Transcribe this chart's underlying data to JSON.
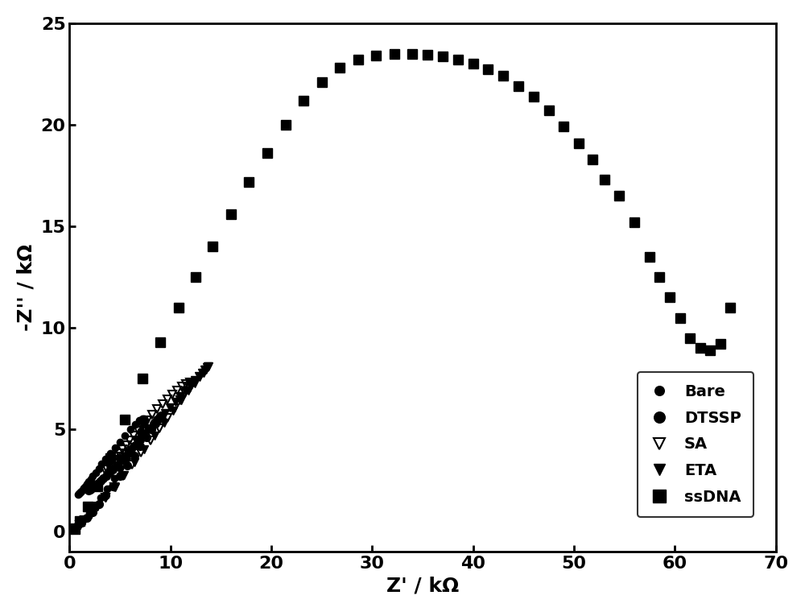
{
  "title": "",
  "xlabel": "Z' / kΩ",
  "ylabel": "-Z'' / kΩ",
  "xlim": [
    0,
    70
  ],
  "ylim": [
    -1,
    25
  ],
  "xticks": [
    0,
    10,
    20,
    30,
    40,
    50,
    60,
    70
  ],
  "yticks": [
    0,
    5,
    10,
    15,
    20,
    25
  ],
  "bare_x": [
    0.3,
    0.5,
    0.8,
    1.1,
    1.5,
    2.0,
    2.5,
    3.1,
    3.7,
    4.4,
    5.0,
    5.6,
    6.2,
    6.7,
    7.1,
    7.4,
    7.5,
    7.4,
    7.2,
    6.9,
    6.5,
    6.0,
    5.5,
    5.0,
    4.5,
    4.0,
    3.6,
    3.2,
    2.9,
    2.6,
    2.3,
    2.1,
    1.9,
    1.7,
    1.55,
    1.42,
    1.3,
    1.2,
    1.1,
    1.02,
    0.95,
    0.88
  ],
  "bare_y": [
    0.05,
    0.12,
    0.22,
    0.38,
    0.6,
    0.9,
    1.25,
    1.65,
    2.1,
    2.6,
    3.1,
    3.6,
    4.1,
    4.55,
    4.95,
    5.25,
    5.45,
    5.55,
    5.55,
    5.45,
    5.25,
    5.0,
    4.7,
    4.4,
    4.1,
    3.82,
    3.55,
    3.3,
    3.08,
    2.88,
    2.7,
    2.55,
    2.42,
    2.3,
    2.2,
    2.12,
    2.05,
    1.98,
    1.92,
    1.88,
    1.84,
    1.8
  ],
  "dtssp_x": [
    0.3,
    0.5,
    0.8,
    1.2,
    1.7,
    2.3,
    2.9,
    3.6,
    4.3,
    5.0,
    5.7,
    6.4,
    7.0,
    7.6,
    8.1,
    8.5,
    8.8,
    9.0,
    9.05,
    8.95,
    8.7,
    8.35,
    7.9,
    7.45,
    7.0,
    6.5,
    6.0,
    5.55,
    5.1,
    4.7,
    4.3,
    3.95,
    3.62,
    3.32,
    3.05,
    2.82,
    2.62,
    2.44,
    2.28,
    2.15,
    2.04,
    1.95,
    1.87
  ],
  "dtssp_y": [
    0.05,
    0.12,
    0.25,
    0.42,
    0.65,
    0.95,
    1.32,
    1.75,
    2.22,
    2.72,
    3.22,
    3.72,
    4.2,
    4.62,
    5.0,
    5.3,
    5.52,
    5.65,
    5.7,
    5.65,
    5.5,
    5.3,
    5.05,
    4.78,
    4.5,
    4.22,
    3.95,
    3.7,
    3.47,
    3.25,
    3.05,
    2.88,
    2.72,
    2.58,
    2.46,
    2.36,
    2.28,
    2.21,
    2.15,
    2.1,
    2.06,
    2.03,
    2.0
  ],
  "sa_x": [
    0.3,
    0.6,
    1.0,
    1.5,
    2.1,
    2.8,
    3.6,
    4.4,
    5.3,
    6.2,
    7.1,
    8.0,
    8.9,
    9.7,
    10.4,
    11.0,
    11.5,
    11.9,
    12.1,
    12.2,
    12.15,
    11.9,
    11.55,
    11.15,
    10.7,
    10.2,
    9.7,
    9.2,
    8.7,
    8.2,
    7.7,
    7.25,
    6.8,
    6.38,
    5.98,
    5.6,
    5.25,
    4.92,
    4.62,
    4.35,
    4.1,
    3.88,
    3.68,
    3.5
  ],
  "sa_y": [
    0.05,
    0.15,
    0.3,
    0.52,
    0.82,
    1.2,
    1.65,
    2.15,
    2.7,
    3.28,
    3.88,
    4.48,
    5.05,
    5.58,
    6.05,
    6.45,
    6.78,
    7.02,
    7.18,
    7.28,
    7.32,
    7.3,
    7.22,
    7.1,
    6.92,
    6.72,
    6.5,
    6.25,
    6.0,
    5.72,
    5.45,
    5.18,
    4.92,
    4.68,
    4.45,
    4.22,
    4.02,
    3.82,
    3.65,
    3.5,
    3.36,
    3.24,
    3.12,
    3.02
  ],
  "eta_x": [
    0.3,
    0.6,
    1.0,
    1.5,
    2.1,
    2.8,
    3.6,
    4.5,
    5.4,
    6.4,
    7.4,
    8.4,
    9.4,
    10.3,
    11.1,
    11.8,
    12.4,
    12.9,
    13.3,
    13.55,
    13.7,
    13.75,
    13.72,
    13.6,
    13.4,
    13.12,
    12.78,
    12.4,
    11.95,
    11.5,
    11.0,
    10.5,
    9.98,
    9.48,
    8.98,
    8.5,
    8.02,
    7.58,
    7.16,
    6.78,
    6.42,
    6.08,
    5.78,
    5.5,
    5.25,
    5.02
  ],
  "eta_y": [
    0.05,
    0.15,
    0.3,
    0.52,
    0.82,
    1.2,
    1.65,
    2.18,
    2.75,
    3.38,
    4.02,
    4.68,
    5.32,
    5.92,
    6.45,
    6.9,
    7.28,
    7.58,
    7.8,
    7.95,
    8.05,
    8.1,
    8.1,
    8.05,
    7.95,
    7.8,
    7.62,
    7.42,
    7.18,
    6.92,
    6.65,
    6.38,
    6.1,
    5.82,
    5.55,
    5.28,
    5.02,
    4.78,
    4.56,
    4.35,
    4.15,
    3.98,
    3.82,
    3.68,
    3.55,
    3.44
  ],
  "ssdna_x": [
    0.5,
    1.0,
    1.8,
    2.8,
    4.0,
    5.5,
    7.2,
    9.0,
    10.8,
    12.5,
    14.2,
    16.0,
    17.8,
    19.6,
    21.4,
    23.2,
    25.0,
    26.8,
    28.6,
    30.4,
    32.2,
    34.0,
    35.5,
    37.0,
    38.5,
    40.0,
    41.5,
    43.0,
    44.5,
    46.0,
    47.5,
    49.0,
    50.5,
    51.8,
    53.0,
    54.5,
    56.0,
    57.5,
    58.5,
    59.5,
    60.5,
    61.5,
    62.5,
    63.5,
    64.5,
    65.5
  ],
  "ssdna_y": [
    0.1,
    0.5,
    1.2,
    2.2,
    3.6,
    5.5,
    7.5,
    9.3,
    11.0,
    12.5,
    14.0,
    15.6,
    17.2,
    18.6,
    20.0,
    21.2,
    22.1,
    22.8,
    23.2,
    23.4,
    23.5,
    23.5,
    23.45,
    23.35,
    23.2,
    23.0,
    22.75,
    22.4,
    21.9,
    21.4,
    20.7,
    19.9,
    19.1,
    18.3,
    17.3,
    16.5,
    15.2,
    13.5,
    12.5,
    11.5,
    10.5,
    9.5,
    9.0,
    8.9,
    9.2,
    11.0
  ],
  "legend_labels": [
    "Bare",
    "DTSSP",
    "SA",
    "ETA",
    "ssDNA"
  ],
  "marker_color": "#000000",
  "bg_color": "#ffffff",
  "fontsize_axis_label": 18,
  "fontsize_ticks": 16,
  "fontsize_legend": 14
}
